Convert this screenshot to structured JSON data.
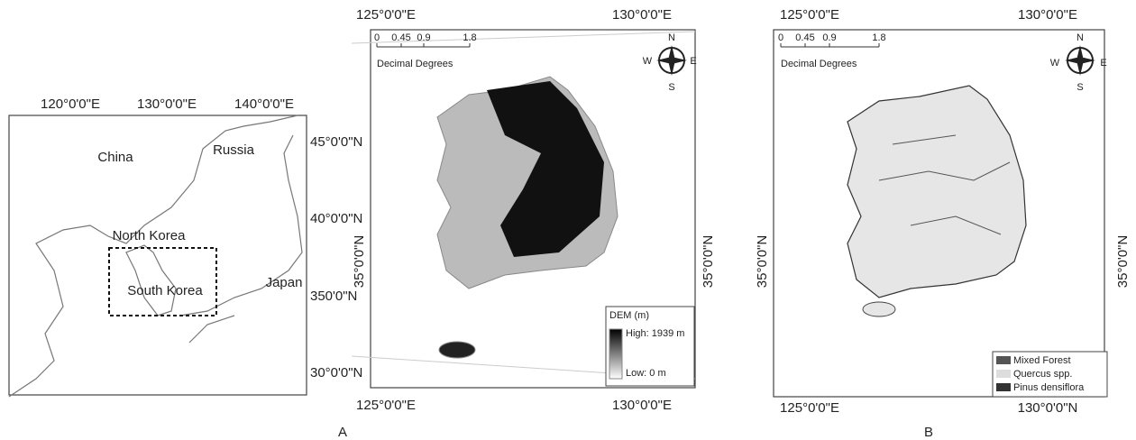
{
  "overview": {
    "top_labels": [
      "120°0'0\"E",
      "130°0'0\"E",
      "140°0'0\"E"
    ],
    "right_labels": [
      "45°0'0\"N",
      "40°0'0\"N",
      "350'0\"N",
      "30°0'0\"N"
    ],
    "places": [
      "China",
      "Russia",
      "North Korea",
      "South Korea",
      "Japan"
    ]
  },
  "panel_a": {
    "label": "A",
    "top_labels": [
      "125°0'0\"E",
      "130°0'0\"E"
    ],
    "bottom_labels": [
      "125°0'0\"E",
      "130°0'0\"E"
    ],
    "left_label": "35°0'0\"N",
    "right_label": "35°0'0\"N",
    "scale_bar": {
      "ticks": [
        0,
        0.45,
        0.9,
        1.8
      ],
      "unit": "Decimal Degrees"
    },
    "compass": [
      "N",
      "W",
      "E",
      "S"
    ],
    "legend": {
      "title": "DEM (m)",
      "high": "High: 1939 m",
      "low": "Low: 0 m"
    }
  },
  "panel_b": {
    "label": "B",
    "top_labels": [
      "125°0'0\"E",
      "130°0'0\"E"
    ],
    "bottom_labels": [
      "125°0'0\"E",
      "130°0'0\"N"
    ],
    "left_label": "35°0'0\"N",
    "right_label": "35°0'0\"N",
    "scale_bar": {
      "ticks": [
        0,
        0.45,
        0.9,
        1.8
      ],
      "unit": "Decimal Degrees"
    },
    "compass": [
      "N",
      "W",
      "E",
      "S"
    ],
    "legend": {
      "items": [
        "Mixed Forest",
        "Quercus spp.",
        "Pinus densiflora"
      ]
    }
  }
}
